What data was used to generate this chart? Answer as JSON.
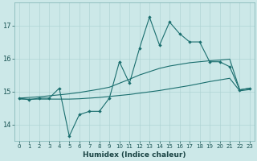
{
  "xlabel": "Humidex (Indice chaleur)",
  "background_color": "#cce8e8",
  "grid_color": "#b0d4d4",
  "line_color": "#1a6e6e",
  "x_values": [
    0,
    1,
    2,
    3,
    4,
    5,
    6,
    7,
    8,
    9,
    10,
    11,
    12,
    13,
    14,
    15,
    16,
    17,
    18,
    19,
    20,
    21,
    22,
    23
  ],
  "y_jagged": [
    14.8,
    14.75,
    14.8,
    14.8,
    15.1,
    13.65,
    14.3,
    14.4,
    14.4,
    14.8,
    15.9,
    15.25,
    16.3,
    17.25,
    16.4,
    17.1,
    16.75,
    16.5,
    16.5,
    15.9,
    15.9,
    15.75,
    15.05,
    15.1
  ],
  "y_upper": [
    14.8,
    14.82,
    14.84,
    14.87,
    14.9,
    14.93,
    14.97,
    15.02,
    15.07,
    15.13,
    15.25,
    15.37,
    15.5,
    15.6,
    15.7,
    15.77,
    15.82,
    15.87,
    15.9,
    15.93,
    15.95,
    15.98,
    15.05,
    15.1
  ],
  "y_lower": [
    14.77,
    14.77,
    14.77,
    14.77,
    14.77,
    14.77,
    14.78,
    14.8,
    14.82,
    14.85,
    14.88,
    14.91,
    14.95,
    14.99,
    15.03,
    15.08,
    15.13,
    15.18,
    15.24,
    15.3,
    15.35,
    15.4,
    15.02,
    15.06
  ],
  "ylim": [
    13.5,
    17.7
  ],
  "yticks": [
    14,
    15,
    16,
    17
  ],
  "xticks": [
    0,
    1,
    2,
    3,
    4,
    5,
    6,
    7,
    8,
    9,
    10,
    11,
    12,
    13,
    14,
    15,
    16,
    17,
    18,
    19,
    20,
    21,
    22,
    23
  ]
}
